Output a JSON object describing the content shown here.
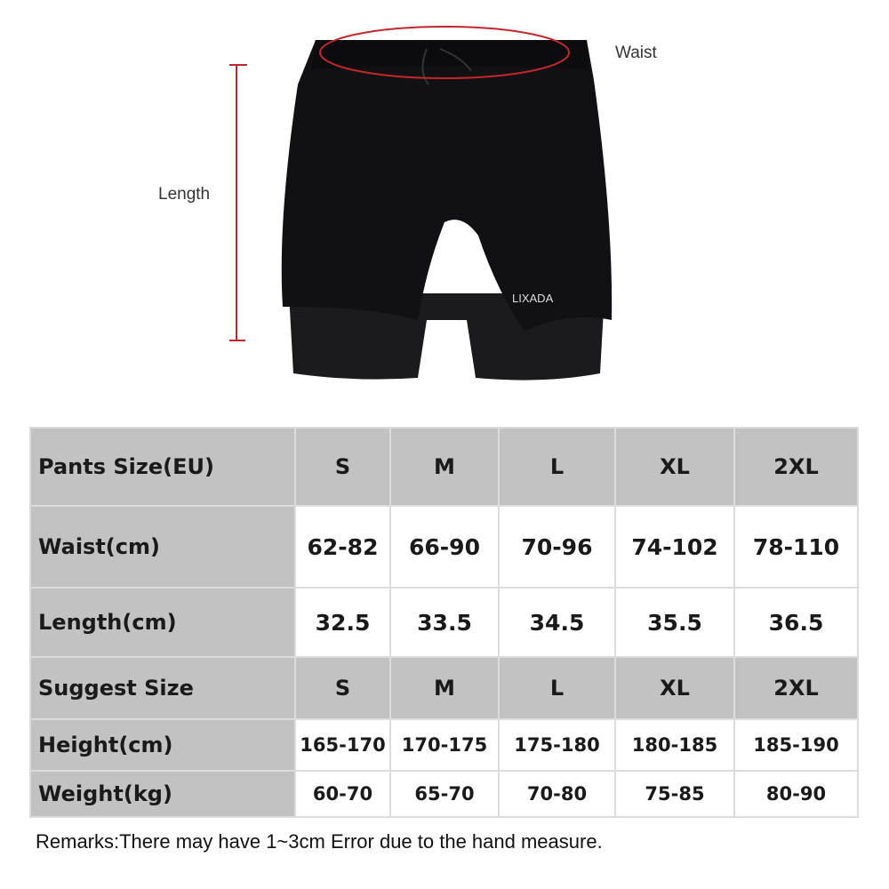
{
  "photo": {
    "brand_logo": "LIXADA",
    "waist_label": "Waist",
    "length_label": "Length",
    "accent_color": "#c0282d"
  },
  "table": {
    "rows": [
      {
        "label": "Pants Size(EU)",
        "values": [
          "S",
          "M",
          "L",
          "XL",
          "2XL"
        ],
        "style": "gray"
      },
      {
        "label": "Waist(cm)",
        "values": [
          "62-82",
          "66-90",
          "70-96",
          "74-102",
          "78-110"
        ],
        "style": "white"
      },
      {
        "label": "Length(cm)",
        "values": [
          "32.5",
          "33.5",
          "34.5",
          "35.5",
          "36.5"
        ],
        "style": "white"
      },
      {
        "label": "Suggest Size",
        "values": [
          "S",
          "M",
          "L",
          "XL",
          "2XL"
        ],
        "style": "gray"
      },
      {
        "label": "Height(cm)",
        "values": [
          "165-170",
          "170-175",
          "175-180",
          "180-185",
          "185-190"
        ],
        "style": "white"
      },
      {
        "label": "Weight(kg)",
        "values": [
          "60-70",
          "65-70",
          "70-80",
          "75-85",
          "80-90"
        ],
        "style": "white"
      }
    ]
  },
  "remark": "Remarks:There may have 1~3cm Error due to the hand measure."
}
